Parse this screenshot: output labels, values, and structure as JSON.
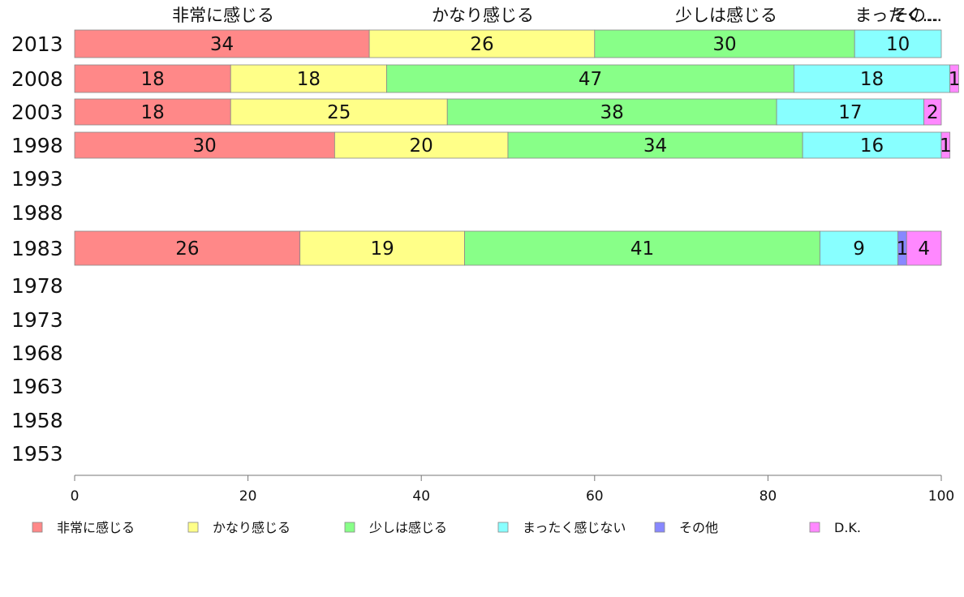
{
  "chart_data": {
    "type": "bar",
    "orientation": "horizontal",
    "stacked": true,
    "categories": [
      "2013",
      "2008",
      "2003",
      "1998",
      "1993",
      "1988",
      "1983",
      "1978",
      "1973",
      "1968",
      "1963",
      "1958",
      "1953"
    ],
    "series": [
      {
        "name": "非常に感じる",
        "color": "#ff8888",
        "values": [
          34,
          18,
          18,
          30,
          null,
          null,
          26,
          null,
          null,
          null,
          null,
          null,
          null
        ]
      },
      {
        "name": "かなり感じる",
        "color": "#ffff88",
        "values": [
          26,
          18,
          25,
          20,
          null,
          null,
          19,
          null,
          null,
          null,
          null,
          null,
          null
        ]
      },
      {
        "name": "少しは感じる",
        "color": "#88ff88",
        "values": [
          30,
          47,
          38,
          34,
          null,
          null,
          41,
          null,
          null,
          null,
          null,
          null,
          null
        ]
      },
      {
        "name": "まったく感じない",
        "color": "#88ffff",
        "values": [
          10,
          18,
          17,
          16,
          null,
          null,
          9,
          null,
          null,
          null,
          null,
          null,
          null
        ]
      },
      {
        "name": "その他",
        "color": "#8888ff",
        "values": [
          0,
          0,
          0,
          0,
          null,
          null,
          1,
          null,
          null,
          null,
          null,
          null,
          null
        ]
      },
      {
        "name": "D.K.",
        "color": "#ff88ff",
        "values": [
          0,
          1,
          2,
          1,
          null,
          null,
          4,
          null,
          null,
          null,
          null,
          null,
          null
        ]
      }
    ],
    "top_labels": [
      "非常に感じる",
      "かなり感じる",
      "少しは感じる",
      "まったく...",
      "その..."
    ],
    "xlim": [
      0,
      100
    ],
    "xticks": [
      "0",
      "20",
      "40",
      "60",
      "80",
      "100"
    ],
    "grid": false,
    "legend_position": "bottom"
  }
}
